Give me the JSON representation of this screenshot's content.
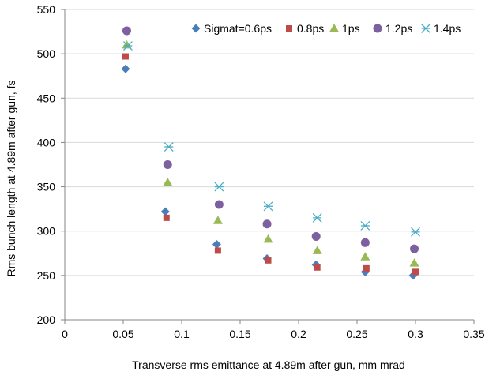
{
  "chart_data": {
    "type": "scatter",
    "xlabel": "Transverse rms emittance at 4.89m after gun, mm mrad",
    "ylabel": "Rms bunch length at 4.89m after gun, fs",
    "xlim": [
      0,
      0.35
    ],
    "ylim": [
      200,
      550
    ],
    "x_ticks": [
      "0",
      "0.05",
      "0.1",
      "0.15",
      "0.2",
      "0.25",
      "0.3",
      "0.35"
    ],
    "y_ticks": [
      "200",
      "250",
      "300",
      "350",
      "400",
      "450",
      "500",
      "550"
    ],
    "grid": "horizontal",
    "legend_position": "top-right",
    "series": [
      {
        "name": "Sigmat=0.6ps",
        "marker": "diamond",
        "color": "#4a7ebb",
        "points": [
          [
            0.052,
            483
          ],
          [
            0.086,
            322
          ],
          [
            0.13,
            285
          ],
          [
            0.173,
            269
          ],
          [
            0.215,
            262
          ],
          [
            0.257,
            254
          ],
          [
            0.298,
            250
          ]
        ]
      },
      {
        "name": "0.8ps",
        "marker": "square",
        "color": "#be4b48",
        "points": [
          [
            0.052,
            497
          ],
          [
            0.087,
            315
          ],
          [
            0.131,
            278
          ],
          [
            0.174,
            267
          ],
          [
            0.216,
            259
          ],
          [
            0.258,
            258
          ],
          [
            0.3,
            254
          ]
        ]
      },
      {
        "name": "1ps",
        "marker": "triangle",
        "color": "#98b954",
        "points": [
          [
            0.053,
            510
          ],
          [
            0.088,
            355
          ],
          [
            0.131,
            312
          ],
          [
            0.174,
            291
          ],
          [
            0.216,
            278
          ],
          [
            0.257,
            271
          ],
          [
            0.299,
            264
          ]
        ]
      },
      {
        "name": "1.2ps",
        "marker": "circle",
        "color": "#7d60a0",
        "points": [
          [
            0.053,
            526
          ],
          [
            0.088,
            375
          ],
          [
            0.132,
            330
          ],
          [
            0.173,
            308
          ],
          [
            0.215,
            294
          ],
          [
            0.257,
            287
          ],
          [
            0.299,
            280
          ]
        ]
      },
      {
        "name": "1.4ps",
        "marker": "star",
        "color": "#4bacc6",
        "points": [
          [
            0.054,
            509
          ],
          [
            0.089,
            395
          ],
          [
            0.132,
            350
          ],
          [
            0.174,
            328
          ],
          [
            0.216,
            315
          ],
          [
            0.257,
            306
          ],
          [
            0.3,
            299
          ]
        ]
      }
    ]
  }
}
